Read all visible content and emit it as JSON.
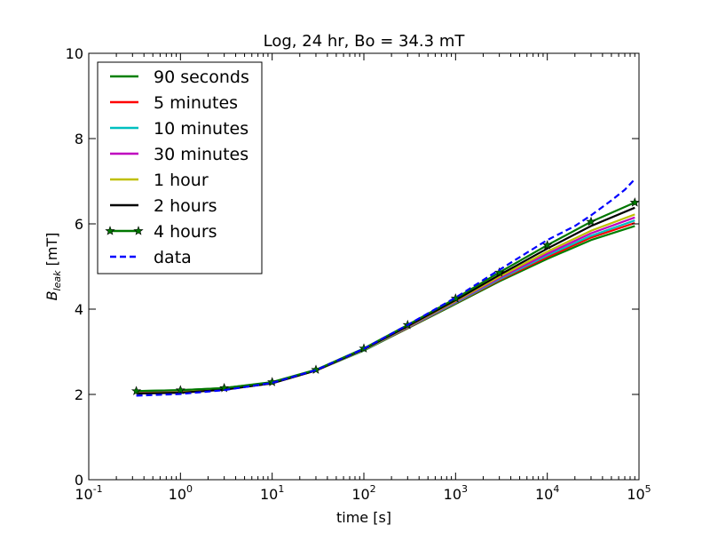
{
  "chart_data": {
    "type": "line",
    "title": "Log, 24 hr, Bo = 34.3 mT",
    "xlabel": "time [s]",
    "ylabel_main": "B",
    "ylabel_sub": "leak",
    "ylabel_unit": " [mT]",
    "xscale": "log",
    "xlim": [
      0.1,
      100000
    ],
    "ylim": [
      0,
      10
    ],
    "grid": false,
    "legend_position": "upper-left",
    "x_ticks": [
      {
        "value": 0.1,
        "base": "10",
        "exp": "-1"
      },
      {
        "value": 1,
        "base": "10",
        "exp": "0"
      },
      {
        "value": 10,
        "base": "10",
        "exp": "1"
      },
      {
        "value": 100,
        "base": "10",
        "exp": "2"
      },
      {
        "value": 1000,
        "base": "10",
        "exp": "3"
      },
      {
        "value": 10000,
        "base": "10",
        "exp": "4"
      },
      {
        "value": 100000,
        "base": "10",
        "exp": "5"
      }
    ],
    "y_ticks": [
      {
        "value": 0,
        "label": "0"
      },
      {
        "value": 2,
        "label": "2"
      },
      {
        "value": 4,
        "label": "4"
      },
      {
        "value": 6,
        "label": "6"
      },
      {
        "value": 8,
        "label": "8"
      },
      {
        "value": 10,
        "label": "10"
      }
    ],
    "series": [
      {
        "name": "90 seconds",
        "color": "#008000",
        "style": "solid",
        "x": [
          0.33,
          1,
          3,
          10,
          30,
          100,
          300,
          1000,
          3000,
          10000,
          30000,
          90000
        ],
        "y": [
          2.08,
          2.1,
          2.15,
          2.28,
          2.56,
          3.03,
          3.55,
          4.12,
          4.65,
          5.18,
          5.62,
          5.95
        ]
      },
      {
        "name": "5 minutes",
        "color": "#ff0000",
        "style": "solid",
        "x": [
          0.33,
          1,
          3,
          10,
          30,
          100,
          300,
          1000,
          3000,
          10000,
          30000,
          90000
        ],
        "y": [
          2.06,
          2.08,
          2.14,
          2.27,
          2.56,
          3.04,
          3.56,
          4.14,
          4.68,
          5.22,
          5.68,
          6.02
        ]
      },
      {
        "name": "10 minutes",
        "color": "#00bfbf",
        "style": "solid",
        "x": [
          0.33,
          1,
          3,
          10,
          30,
          100,
          300,
          1000,
          3000,
          10000,
          30000,
          90000
        ],
        "y": [
          2.05,
          2.07,
          2.13,
          2.27,
          2.56,
          3.04,
          3.57,
          4.15,
          4.7,
          5.26,
          5.72,
          6.08
        ]
      },
      {
        "name": "30 minutes",
        "color": "#bf00bf",
        "style": "solid",
        "x": [
          0.33,
          1,
          3,
          10,
          30,
          100,
          300,
          1000,
          3000,
          10000,
          30000,
          90000
        ],
        "y": [
          2.04,
          2.06,
          2.12,
          2.26,
          2.56,
          3.05,
          3.58,
          4.17,
          4.73,
          5.3,
          5.78,
          6.15
        ]
      },
      {
        "name": "1 hour",
        "color": "#bfbf00",
        "style": "solid",
        "x": [
          0.33,
          1,
          3,
          10,
          30,
          100,
          300,
          1000,
          3000,
          10000,
          30000,
          90000
        ],
        "y": [
          2.03,
          2.05,
          2.12,
          2.26,
          2.56,
          3.05,
          3.59,
          4.19,
          4.76,
          5.35,
          5.84,
          6.22
        ]
      },
      {
        "name": "2 hours",
        "color": "#000000",
        "style": "solid",
        "x": [
          0.33,
          1,
          3,
          10,
          30,
          100,
          300,
          1000,
          3000,
          10000,
          30000,
          90000
        ],
        "y": [
          2.02,
          2.04,
          2.11,
          2.26,
          2.56,
          3.06,
          3.6,
          4.21,
          4.8,
          5.42,
          5.95,
          6.38
        ]
      },
      {
        "name": "4 hours",
        "color": "#007700",
        "style": "solid",
        "marker": "star",
        "x": [
          0.33,
          1,
          3,
          10,
          30,
          100,
          300,
          1000,
          3000,
          10000,
          30000,
          90000
        ],
        "y": [
          2.08,
          2.1,
          2.15,
          2.29,
          2.58,
          3.08,
          3.63,
          4.25,
          4.86,
          5.5,
          6.05,
          6.5
        ]
      },
      {
        "name": "data",
        "color": "#0000ff",
        "style": "dashed",
        "x": [
          0.33,
          1,
          3,
          10,
          30,
          100,
          300,
          1000,
          3000,
          10000,
          20000,
          30000,
          50000,
          70000,
          90000
        ],
        "y": [
          1.97,
          2.01,
          2.1,
          2.27,
          2.57,
          3.07,
          3.63,
          4.27,
          4.92,
          5.62,
          5.95,
          6.2,
          6.55,
          6.8,
          7.05
        ]
      }
    ]
  }
}
